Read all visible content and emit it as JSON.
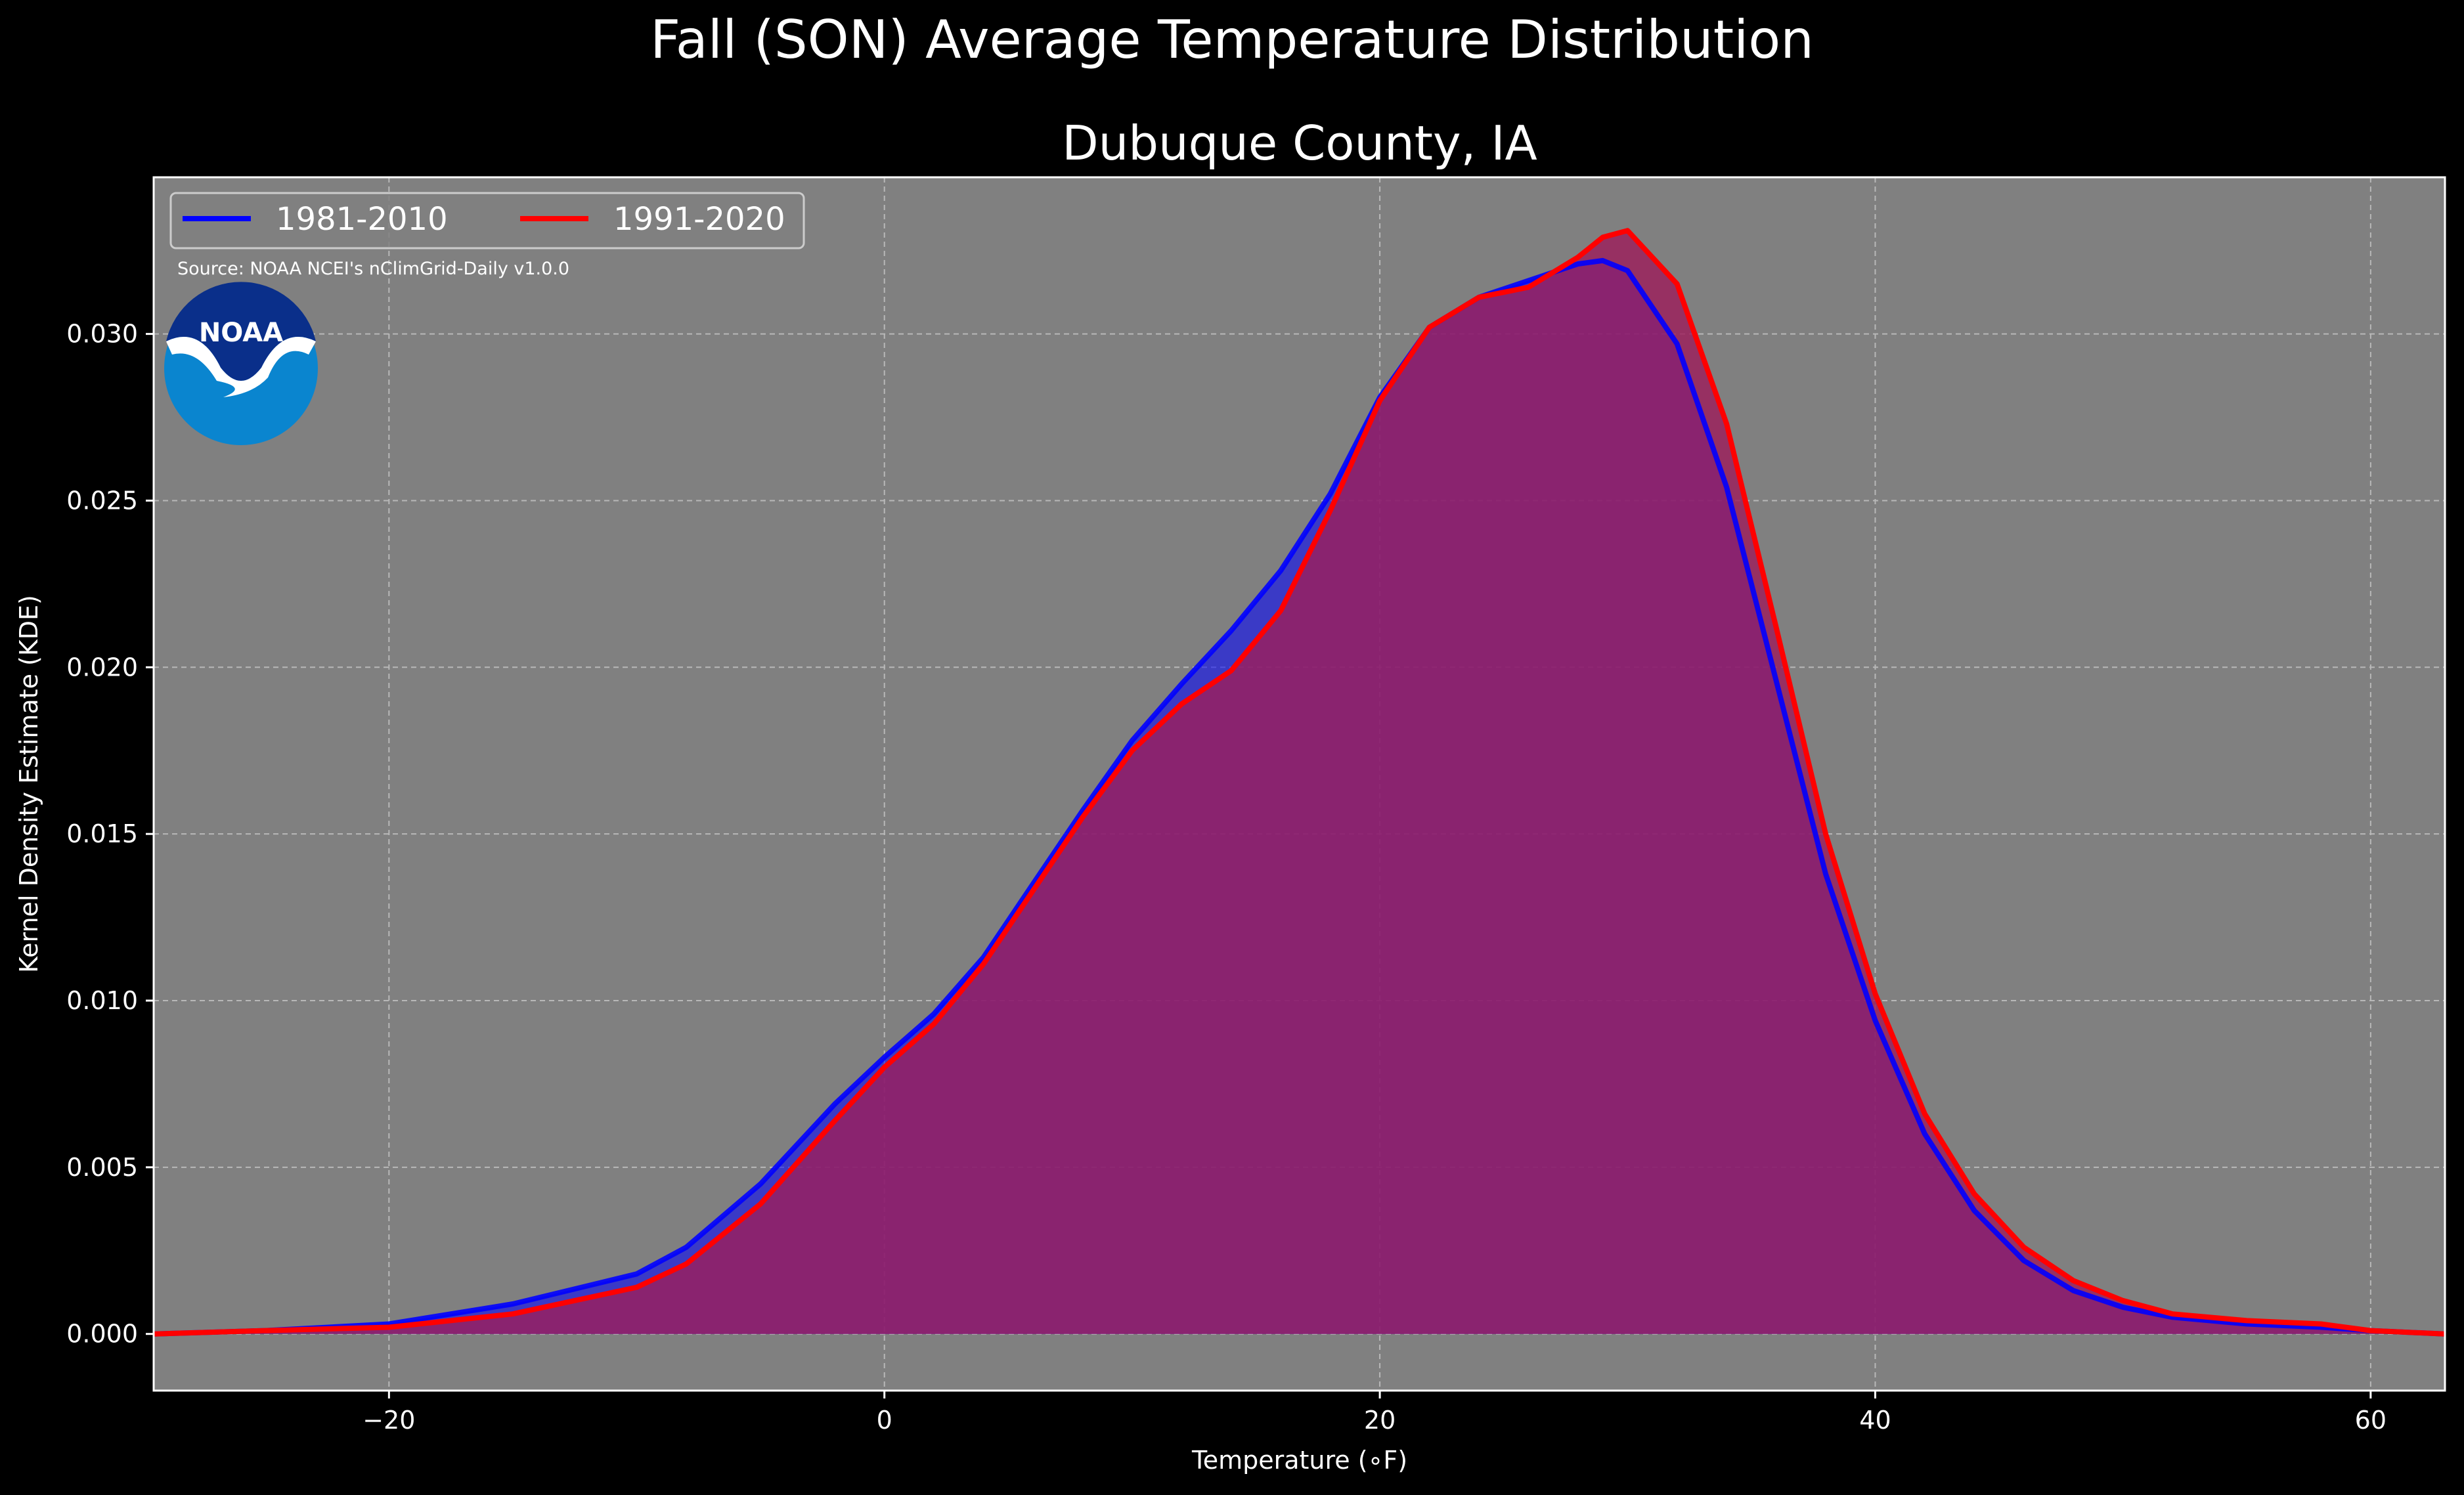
{
  "chart_data": {
    "type": "area",
    "title": "Fall (SON) Average Temperature Distribution",
    "subtitle": "Dubuque County, IA",
    "xlabel": "Temperature (∘F)",
    "ylabel": "Kernel Density Estimate (KDE)",
    "xlim": [
      -29.5,
      63
    ],
    "ylim": [
      -0.0017,
      0.0347
    ],
    "xticks": [
      -20,
      0,
      20,
      40,
      60
    ],
    "xtick_labels": [
      "−20",
      "0",
      "20",
      "40",
      "60"
    ],
    "yticks": [
      0.0,
      0.005,
      0.01,
      0.015,
      0.02,
      0.025,
      0.03
    ],
    "ytick_labels": [
      "0.000",
      "0.005",
      "0.010",
      "0.015",
      "0.020",
      "0.025",
      "0.030"
    ],
    "grid": true,
    "legend_position": "top-left",
    "source_note": "Source: NOAA NCEI's nClimGrid-Daily v1.0.0",
    "logo_text": "NOAA",
    "colors": {
      "background": "#000000",
      "plot_background": "#808080",
      "series_1981": "#0000ff",
      "series_1991": "#ff0000",
      "fill_overlap": "#9c1f5b",
      "noaa_dark": "#0a2f8a",
      "noaa_light": "#0a85cf"
    },
    "series": [
      {
        "name": "1981-2010",
        "color": "#0000ff",
        "x": [
          -29.5,
          -25,
          -20,
          -15,
          -10,
          -8,
          -5,
          -2,
          0,
          2,
          4,
          6,
          8,
          10,
          12,
          14,
          16,
          18,
          20,
          22,
          24,
          26,
          28,
          29,
          30,
          32,
          34,
          36,
          38,
          40,
          42,
          44,
          46,
          48,
          50,
          52,
          55,
          58,
          60,
          63
        ],
        "y": [
          0.0,
          0.0001,
          0.0003,
          0.0009,
          0.0018,
          0.0026,
          0.0045,
          0.0069,
          0.0083,
          0.0096,
          0.0113,
          0.0135,
          0.0157,
          0.0178,
          0.0195,
          0.0211,
          0.0229,
          0.0252,
          0.0281,
          0.0302,
          0.0311,
          0.0316,
          0.0321,
          0.0322,
          0.0319,
          0.0297,
          0.0254,
          0.0196,
          0.0138,
          0.0094,
          0.006,
          0.0037,
          0.0022,
          0.0013,
          0.0008,
          0.0005,
          0.0003,
          0.0002,
          0.0001,
          0.0
        ]
      },
      {
        "name": "1991-2020",
        "color": "#ff0000",
        "x": [
          -29.5,
          -25,
          -20,
          -15,
          -10,
          -8,
          -5,
          -2,
          0,
          2,
          4,
          6,
          8,
          10,
          12,
          14,
          16,
          18,
          20,
          22,
          24,
          26,
          28,
          29,
          30,
          32,
          34,
          36,
          38,
          40,
          42,
          44,
          46,
          48,
          50,
          52,
          55,
          58,
          60,
          63
        ],
        "y": [
          0.0,
          0.0001,
          0.0002,
          0.0006,
          0.0014,
          0.0021,
          0.0039,
          0.0064,
          0.008,
          0.0093,
          0.0111,
          0.0133,
          0.0155,
          0.0175,
          0.0189,
          0.0199,
          0.0217,
          0.0247,
          0.028,
          0.0302,
          0.0311,
          0.0314,
          0.0323,
          0.0329,
          0.0331,
          0.0315,
          0.0273,
          0.0212,
          0.015,
          0.0102,
          0.0066,
          0.0042,
          0.0026,
          0.0016,
          0.001,
          0.0006,
          0.0004,
          0.0003,
          0.0001,
          0.0
        ]
      }
    ]
  }
}
